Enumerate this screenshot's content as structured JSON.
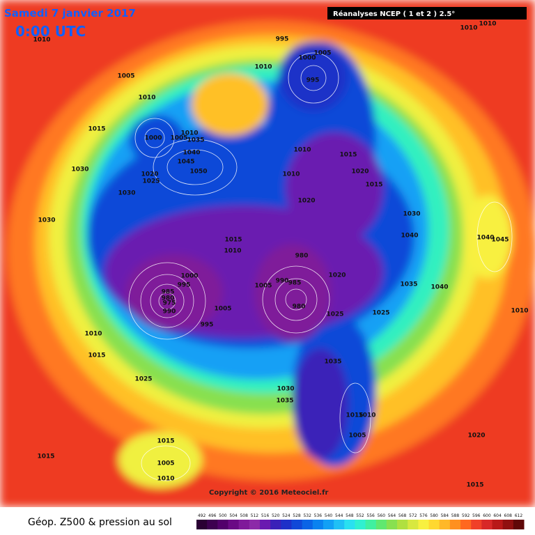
{
  "header": {
    "date": "Samedi 7 janvier 2017",
    "time": "0:00 UTC",
    "source": "Réanalyses NCEP ( 1 et 2 ) 2.5°"
  },
  "copyright": "Copyright © 2016 Meteociel.fr",
  "caption": "Géop. Z500 & pression au sol",
  "isobars": [
    "1010",
    "995",
    "1005",
    "1000",
    "1010",
    "995",
    "1005",
    "1010",
    "1015",
    "1000",
    "1005",
    "1010",
    "1035",
    "1040",
    "1045",
    "1050",
    "1020",
    "1025",
    "1030",
    "1030",
    "1030",
    "1010",
    "1015",
    "1020",
    "1015",
    "1010",
    "1020",
    "1030",
    "1040",
    "1015",
    "1010",
    "980",
    "1000",
    "995",
    "985",
    "980",
    "975",
    "990",
    "1005",
    "995",
    "1005",
    "990",
    "985",
    "980",
    "1020",
    "1025",
    "1025",
    "1035",
    "1040",
    "1010",
    "1045",
    "1040",
    "1010",
    "1015",
    "1025",
    "1035",
    "1030",
    "1035",
    "1015",
    "1010",
    "1005",
    "1020",
    "1015",
    "1015",
    "1005",
    "1010",
    "1015",
    "1010",
    "1010"
  ],
  "legend": {
    "ticks": [
      492,
      496,
      500,
      504,
      508,
      512,
      516,
      520,
      524,
      528,
      532,
      536,
      540,
      544,
      548,
      552,
      556,
      560,
      564,
      568,
      572,
      576,
      580,
      584,
      588,
      592,
      596,
      600,
      604,
      608,
      612
    ],
    "colors": [
      "#2a0033",
      "#3d0050",
      "#52006b",
      "#6a0a85",
      "#7f1a9a",
      "#8c2aa8",
      "#6a1ab0",
      "#3a20b8",
      "#1e30c8",
      "#1048d8",
      "#0a64e6",
      "#0a82f0",
      "#12a0f5",
      "#20c0f5",
      "#2ae0f0",
      "#30f0d0",
      "#40f0a0",
      "#60e870",
      "#88e050",
      "#b0e040",
      "#d8e840",
      "#f8f040",
      "#ffd830",
      "#ffb828",
      "#ff9020",
      "#ff6820",
      "#f04028",
      "#d82828",
      "#b81818",
      "#901010",
      "#600808"
    ]
  }
}
